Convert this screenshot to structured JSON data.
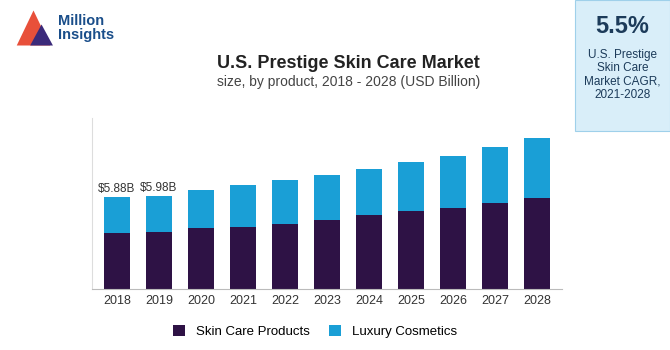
{
  "chart_data": {
    "type": "bar",
    "stacked": true,
    "title": "U.S. Prestige Skin Care Market",
    "subtitle": "size, by product, 2018 - 2028 (USD Billion)",
    "logo_text": "Million\nInsights",
    "cagr_text": "5.5%",
    "cagr_caption": "U.S. Prestige\nSkin Care\nMarket CAGR,\n2021-2028",
    "categories": [
      "2018",
      "2019",
      "2020",
      "2021",
      "2022",
      "2023",
      "2024",
      "2025",
      "2026",
      "2027",
      "2028"
    ],
    "series": [
      {
        "name": "Skin Care Products",
        "color": "#2e1245",
        "values": [
          3.58,
          3.64,
          3.9,
          3.96,
          4.15,
          4.41,
          4.73,
          4.98,
          5.18,
          5.5,
          5.82
        ]
      },
      {
        "name": "Luxury Cosmetics",
        "color": "#1a9fd6",
        "values": [
          2.3,
          2.34,
          2.43,
          2.69,
          2.82,
          2.88,
          3.0,
          3.2,
          3.38,
          3.64,
          3.89
        ]
      }
    ],
    "annotations": [
      {
        "category": "2018",
        "text": "$5.88B"
      },
      {
        "category": "2019",
        "text": "$5.98B"
      }
    ],
    "ylim": [
      0,
      11
    ],
    "tick_labels": "x",
    "grid": false,
    "legend": "lower center"
  }
}
